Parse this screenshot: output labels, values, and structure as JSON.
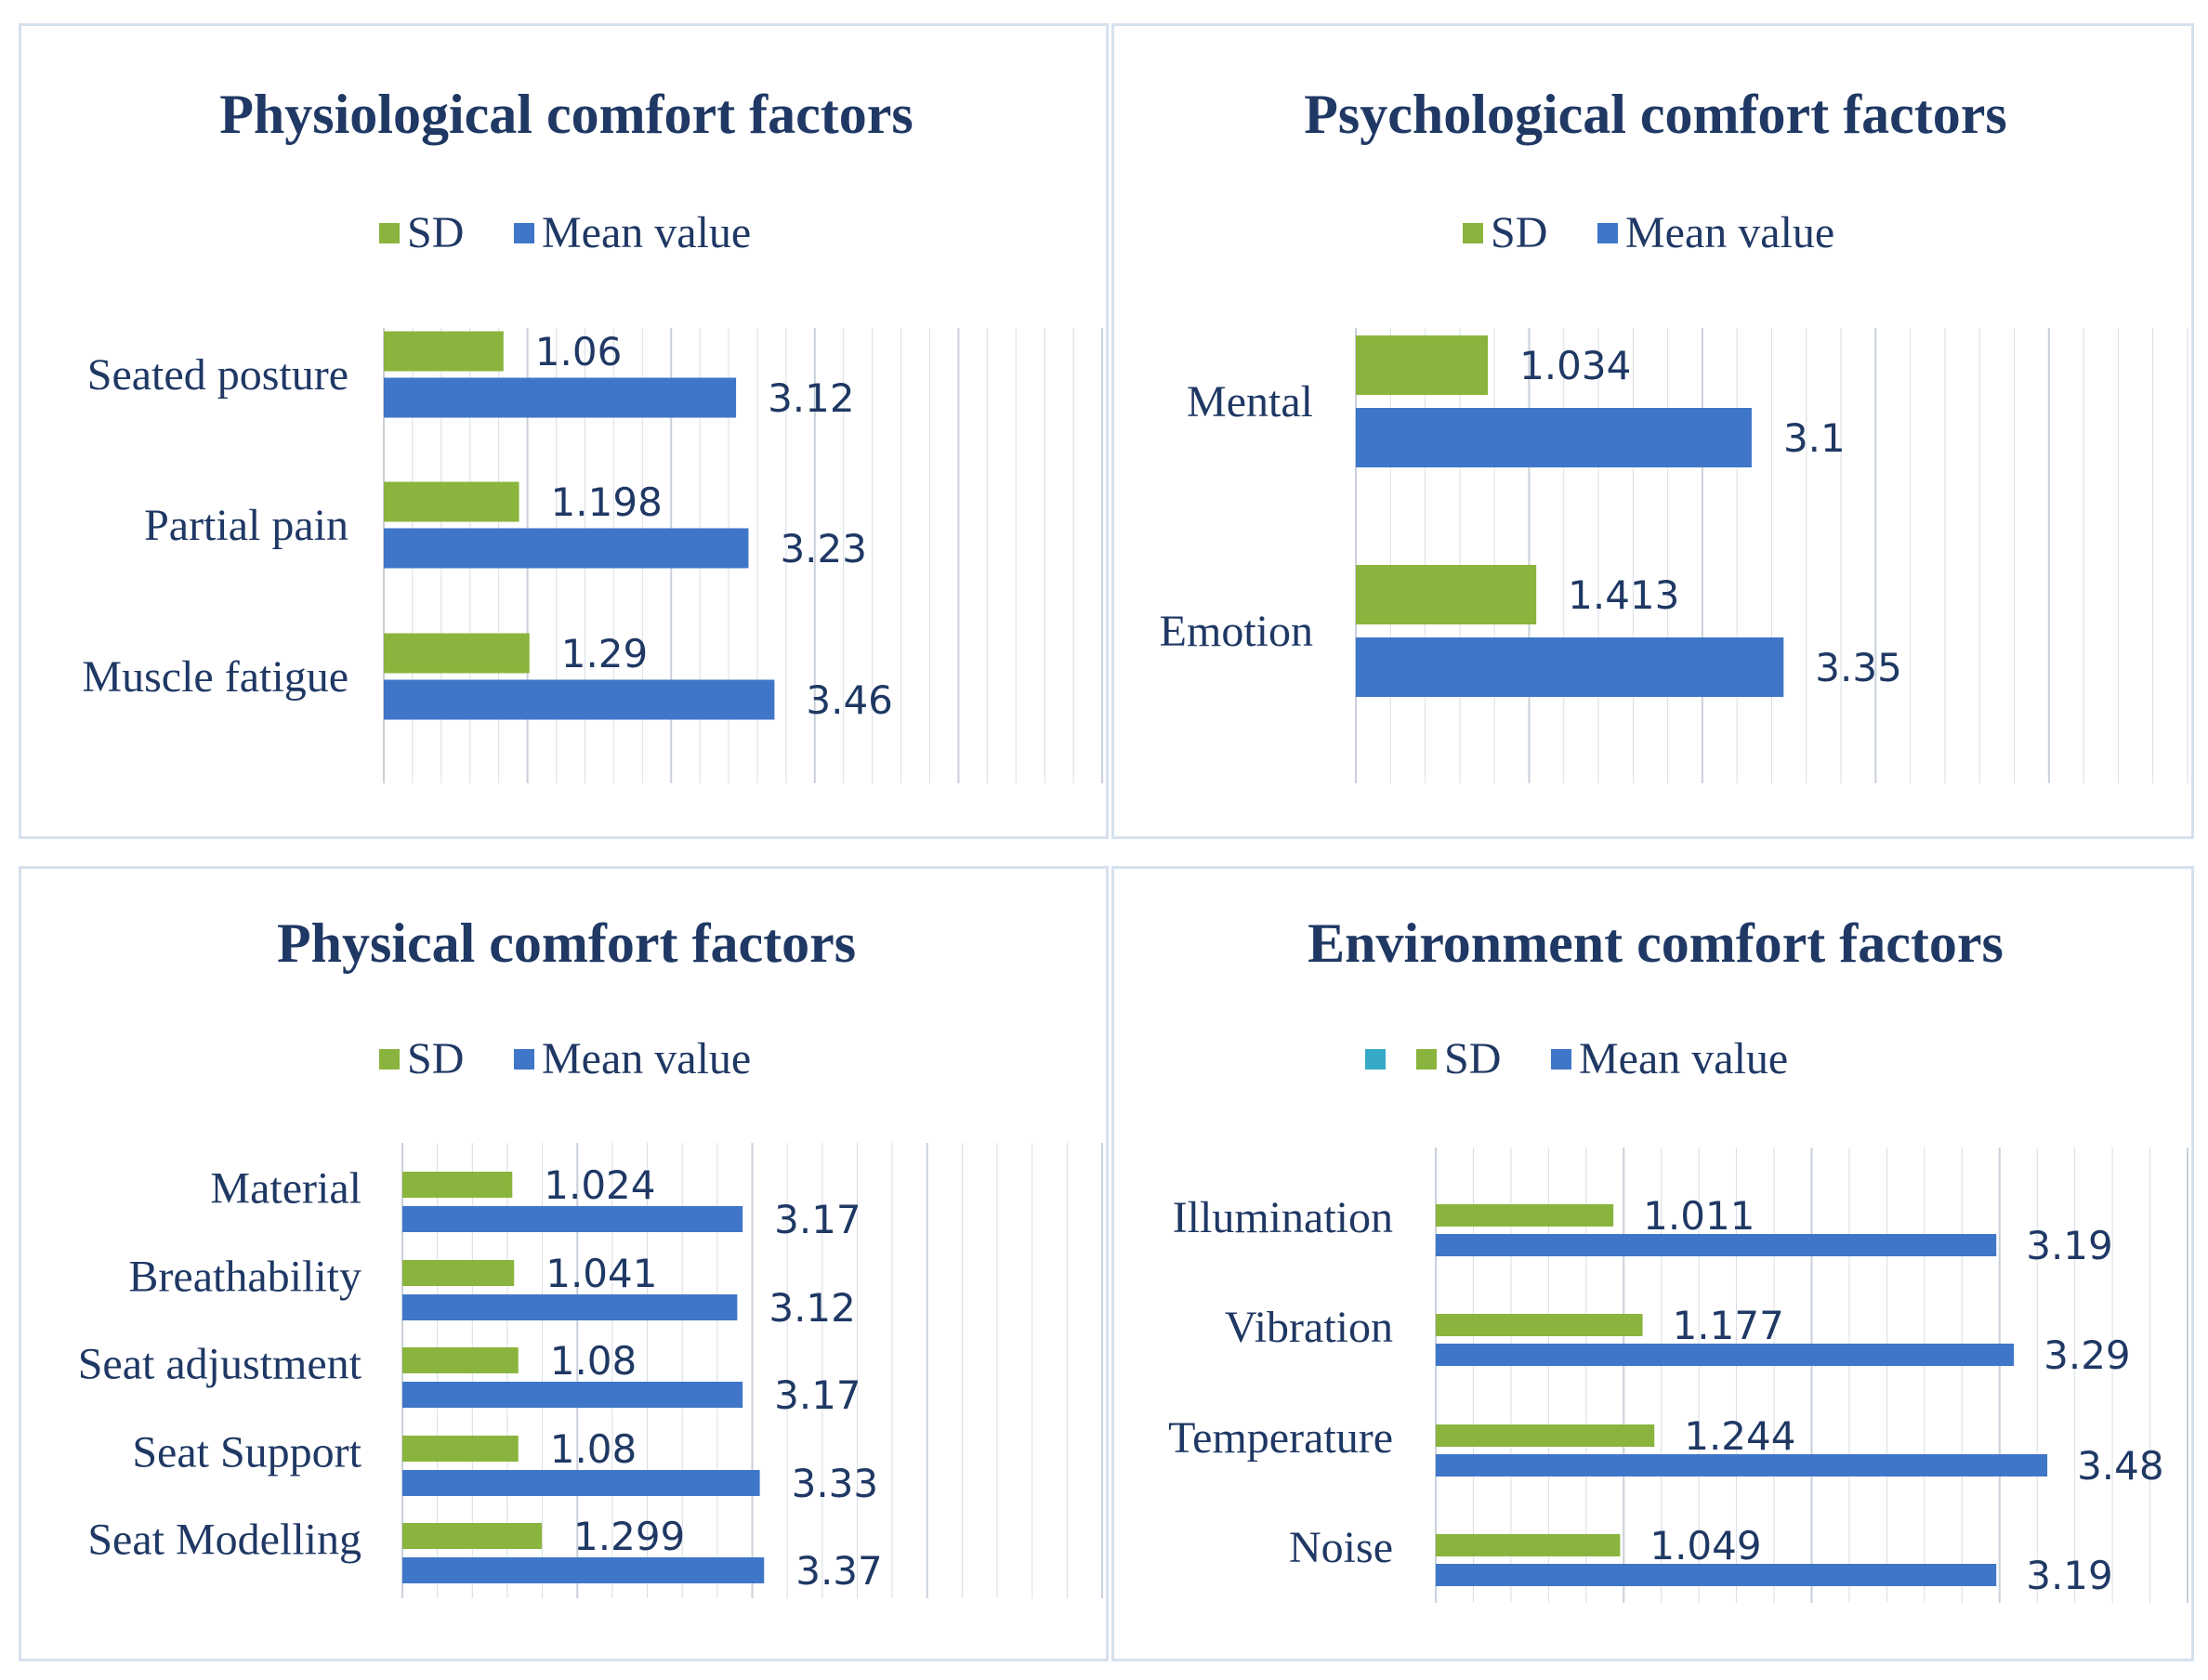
{
  "colors": {
    "sd": "#8ab43d",
    "mean": "#3f76c8",
    "teal": "#36a9c9",
    "text": "#1f3864",
    "grid": "#d9dde3"
  },
  "chart_data": [
    {
      "type": "bar",
      "orientation": "horizontal",
      "title": "Physiological comfort factors",
      "legend": [
        "SD",
        "Mean value"
      ],
      "categories": [
        "Seated posture",
        "Partial pain",
        "Muscle fatigue"
      ],
      "series": [
        {
          "name": "SD",
          "values": [
            1.06,
            1.198,
            1.29
          ],
          "labels": [
            "1.06",
            "1.198",
            "1.29"
          ]
        },
        {
          "name": "Mean value",
          "values": [
            3.12,
            3.23,
            3.46
          ],
          "labels": [
            "3.12",
            "3.23",
            "3.46"
          ]
        }
      ],
      "xlim": [
        0,
        4.2
      ],
      "grid": true
    },
    {
      "type": "bar",
      "orientation": "horizontal",
      "title": "Psychological comfort factors",
      "legend": [
        "SD",
        "Mean value"
      ],
      "categories": [
        "Mental",
        "Emotion"
      ],
      "series": [
        {
          "name": "SD",
          "values": [
            1.034,
            1.413
          ],
          "labels": [
            "1.034",
            "1.413"
          ]
        },
        {
          "name": "Mean value",
          "values": [
            3.1,
            3.35
          ],
          "labels": [
            "3.1",
            "3.35"
          ]
        }
      ],
      "xlim": [
        0,
        4.0
      ],
      "grid": true
    },
    {
      "type": "bar",
      "orientation": "horizontal",
      "title": "Physical comfort factors",
      "legend": [
        "SD",
        "Mean value"
      ],
      "categories": [
        "Material",
        "Breathability",
        "Seat adjustment",
        "Seat Support",
        "Seat Modelling"
      ],
      "series": [
        {
          "name": "SD",
          "values": [
            1.024,
            1.041,
            1.08,
            1.08,
            1.299
          ],
          "labels": [
            "1.024",
            "1.041",
            "1.08",
            "1.08",
            "1.299"
          ]
        },
        {
          "name": "Mean value",
          "values": [
            3.17,
            3.12,
            3.17,
            3.33,
            3.37
          ],
          "labels": [
            "3.17",
            "3.12",
            "3.17",
            "3.33",
            "3.37"
          ]
        }
      ],
      "xlim": [
        0,
        4.0
      ],
      "grid": true
    },
    {
      "type": "bar",
      "orientation": "horizontal",
      "title": "Environment comfort factors",
      "legend": [
        "",
        "SD",
        "Mean value"
      ],
      "categories": [
        "Illumination",
        "Vibration",
        "Temperature",
        "Noise"
      ],
      "series": [
        {
          "name": "SD",
          "values": [
            1.011,
            1.177,
            1.244,
            1.049
          ],
          "labels": [
            "1.011",
            "1.177",
            "1.244",
            "1.049"
          ]
        },
        {
          "name": "Mean value",
          "values": [
            3.19,
            3.29,
            3.48,
            3.19
          ],
          "labels": [
            "3.19",
            "3.29",
            "3.48",
            "3.19"
          ]
        }
      ],
      "xlim": [
        0,
        3.99
      ],
      "grid": true
    }
  ]
}
